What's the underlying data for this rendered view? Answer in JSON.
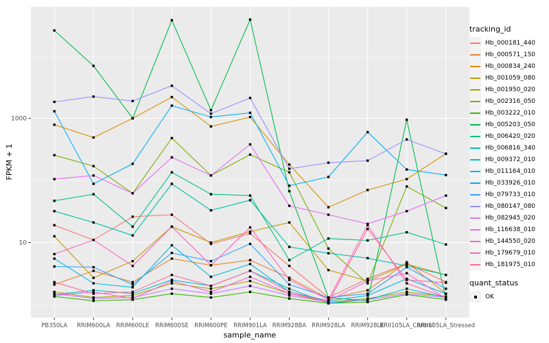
{
  "axes": {
    "y_title": "FPKM + 1",
    "x_title": "sample_name",
    "y_tick_labels": [
      "1000",
      "10"
    ],
    "y_tick_values": [
      1000,
      10
    ]
  },
  "legend": {
    "tracking_title": "tracking_id",
    "quant_title": "quant_status",
    "quant_items": [
      {
        "label": "OK"
      }
    ]
  },
  "colors": {
    "panel_background": "#EBEBEB",
    "gridline": "#FFFFFF",
    "point": "#000000",
    "tick_text": "#4D4D4D",
    "axis_title_text": "#000000"
  },
  "chart_data": {
    "type": "line",
    "title": "",
    "xlabel": "sample_name",
    "ylabel": "FPKM + 1",
    "yscale": "log10",
    "ylim": [
      0.6,
      60000
    ],
    "grid": {
      "major_y": [
        10,
        1000
      ],
      "minor_y": [
        1,
        100,
        10000
      ],
      "vertical_at_each_category": true
    },
    "legend_position": "right",
    "point_shape": "filled-square",
    "categories": [
      "PB350LA",
      "RRIM600LA",
      "RRIM600LE",
      "RRIM600SE",
      "RRIM600PE",
      "RRIM901LA",
      "RRIM928BA",
      "RRIM928LA",
      "RRIM928LE",
      "RRII105LA_Control",
      "RRII105LA_Stressed"
    ],
    "series": [
      {
        "name": "Hb_000181_440",
        "color": "#F8766D",
        "quant_status": "OK",
        "values": [
          19,
          11,
          26,
          28,
          9.5,
          14,
          4.2,
          1.3,
          2.6,
          4.6,
          2.3
        ]
      },
      {
        "name": "Hb_000571_150",
        "color": "#EA8331",
        "quant_status": "OK",
        "values": [
          2.1,
          3.5,
          2.3,
          5.5,
          4.3,
          5.2,
          2.7,
          1.25,
          1.7,
          4.8,
          1.5
        ]
      },
      {
        "name": "Hb_000834_240",
        "color": "#D89000",
        "quant_status": "OK",
        "values": [
          790,
          490,
          1000,
          2200,
          740,
          1050,
          180,
          37,
          70,
          105,
          270
        ]
      },
      {
        "name": "Hb_001059_080",
        "color": "#C09B00",
        "quant_status": "OK",
        "values": [
          12.6,
          2.7,
          5,
          18,
          10,
          15,
          21,
          3.6,
          2.4,
          4.5,
          3.0
        ]
      },
      {
        "name": "Hb_001950_020",
        "color": "#A3A500",
        "quant_status": "OK",
        "values": [
          1.6,
          1.3,
          1.4,
          2.2,
          1.8,
          2.4,
          1.5,
          1.1,
          1.25,
          1.6,
          1.35
        ]
      },
      {
        "name": "Hb_002316_050",
        "color": "#7CAE00",
        "quant_status": "OK",
        "values": [
          255,
          170,
          62,
          480,
          120,
          260,
          135,
          8,
          2.2,
          80,
          36
        ]
      },
      {
        "name": "Hb_003222_010",
        "color": "#39B600",
        "quant_status": "OK",
        "values": [
          1.35,
          1.15,
          1.2,
          1.5,
          1.3,
          1.6,
          1.25,
          1.05,
          1.1,
          1.45,
          1.2
        ]
      },
      {
        "name": "Hb_005203_050",
        "color": "#00BB4E",
        "quant_status": "OK",
        "values": [
          26000,
          7000,
          1000,
          38000,
          1350,
          39000,
          67,
          1.3,
          1.15,
          950,
          1.2
        ]
      },
      {
        "name": "Hb_006420_020",
        "color": "#00C087",
        "quant_status": "OK",
        "values": [
          47,
          60,
          18,
          135,
          60,
          57,
          5.2,
          11.6,
          10.8,
          14.6,
          9.3
        ]
      },
      {
        "name": "Hb_006816_340",
        "color": "#00C1AB",
        "quant_status": "OK",
        "values": [
          32,
          21,
          13,
          88,
          33,
          48,
          8.5,
          6.7,
          5.6,
          4.2,
          3.0
        ]
      },
      {
        "name": "Hb_009372_010",
        "color": "#00BFC4",
        "quant_status": "OK",
        "values": [
          1.45,
          1.7,
          1.5,
          2.5,
          2.0,
          3.5,
          1.8,
          1.05,
          1.2,
          1.8,
          1.3
        ]
      },
      {
        "name": "Hb_011164_010",
        "color": "#00BAE0",
        "quant_status": "OK",
        "values": [
          5.5,
          2.2,
          1.9,
          9,
          2.8,
          4.5,
          1.6,
          1.15,
          1.4,
          2.6,
          1.5
        ]
      },
      {
        "name": "Hb_033926_010",
        "color": "#00B0F6",
        "quant_status": "OK",
        "values": [
          1300,
          88,
          185,
          1600,
          1050,
          1230,
          82,
          114,
          600,
          150,
          122
        ]
      },
      {
        "name": "Hb_079733_010",
        "color": "#35A2FF",
        "quant_status": "OK",
        "values": [
          4.1,
          4.0,
          2.1,
          6.8,
          5.0,
          9.5,
          2.1,
          1.3,
          1.5,
          4.0,
          1.8
        ]
      },
      {
        "name": "Hb_080147_080",
        "color": "#9590FF",
        "quant_status": "OK",
        "values": [
          1840,
          2240,
          1900,
          3350,
          1190,
          2130,
          154,
          193,
          208,
          457,
          268
        ]
      },
      {
        "name": "Hb_082945_020",
        "color": "#C77CFF",
        "quant_status": "OK",
        "values": [
          1.5,
          1.25,
          1.3,
          1.8,
          1.5,
          2.0,
          1.4,
          1.1,
          1.2,
          1.5,
          1.3
        ]
      },
      {
        "name": "Hb_116638_010",
        "color": "#E76BF3",
        "quant_status": "OK",
        "values": [
          105,
          120,
          62,
          235,
          120,
          380,
          39,
          28,
          20,
          32,
          57
        ]
      },
      {
        "name": "Hb_144550_020",
        "color": "#FA62DB",
        "quant_status": "OK",
        "values": [
          1.4,
          1.6,
          1.25,
          2.4,
          1.6,
          2.8,
          1.5,
          1.15,
          2.4,
          3.2,
          1.25
        ]
      },
      {
        "name": "Hb_179679_010",
        "color": "#FF62BC",
        "quant_status": "OK",
        "values": [
          6.5,
          11,
          4.2,
          18,
          4.3,
          17.5,
          2.5,
          1.2,
          19,
          2.2,
          1.3
        ]
      },
      {
        "name": "Hb_181975_010",
        "color": "#FF6A98",
        "quant_status": "OK",
        "values": [
          2.3,
          1.5,
          1.6,
          3.0,
          2.0,
          3.5,
          1.6,
          1.1,
          16.5,
          2.5,
          2.25
        ]
      }
    ]
  }
}
